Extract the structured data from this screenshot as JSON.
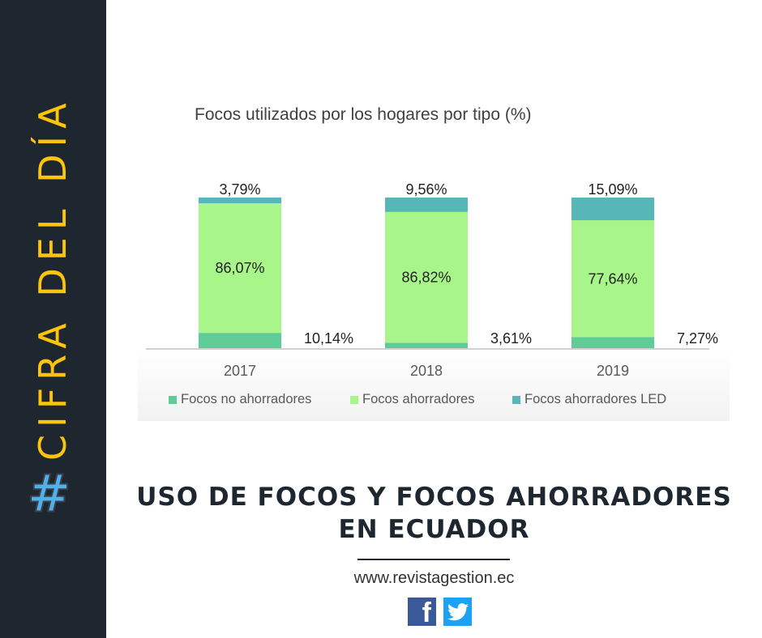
{
  "sidebar": {
    "hashtag": "#",
    "label": "CIFRA DEL DÍA"
  },
  "chart_data": {
    "type": "bar",
    "stacked": true,
    "title": "Focos utilizados por  los hogares por tipo (%)",
    "categories": [
      "2017",
      "2018",
      "2019"
    ],
    "series": [
      {
        "name": "Focos no ahorradores",
        "color": "#5fcc98",
        "values": [
          10.14,
          3.61,
          7.27
        ],
        "labels": [
          "10,14%",
          "3,61%",
          "7,27%"
        ]
      },
      {
        "name": "Focos ahorradores",
        "color": "#a8f58a",
        "values": [
          86.07,
          86.82,
          77.64
        ],
        "labels": [
          "86,07%",
          "86,82%",
          "77,64%"
        ]
      },
      {
        "name": "Focos ahorradores LED",
        "color": "#57b6b8",
        "values": [
          3.79,
          9.56,
          15.09
        ],
        "labels": [
          "3,79%",
          "9,56%",
          "15,09%"
        ]
      }
    ],
    "ylim": [
      0,
      100
    ],
    "legend": "bottom",
    "grid": false
  },
  "headline": [
    "USO DE FOCOS Y FOCOS AHORRADORES",
    "EN ECUADOR"
  ],
  "url": "www.revistagestion.ec",
  "social": {
    "facebook": "f",
    "twitter": "twitter"
  }
}
